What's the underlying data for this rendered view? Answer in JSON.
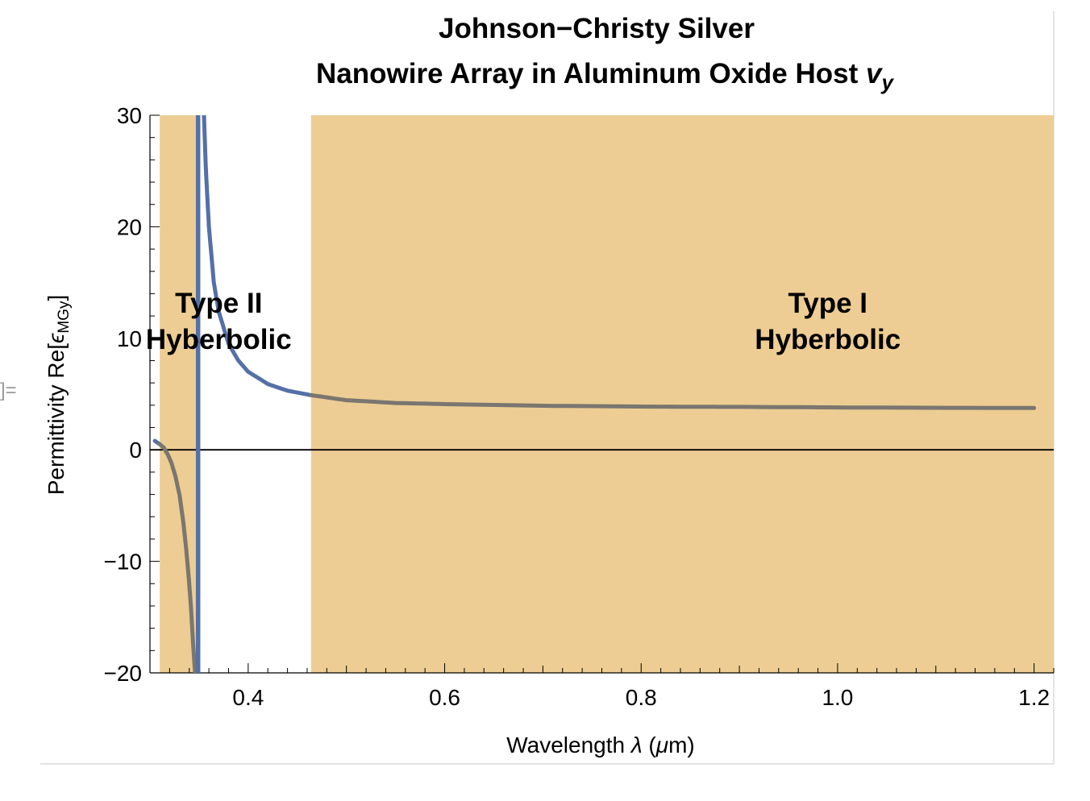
{
  "page": {
    "cell_marker": "]="
  },
  "chart_data": {
    "type": "line",
    "title": "Johnson−Christy Silver",
    "subtitle_text": "Nanowire Array in Aluminum Oxide Host ",
    "subtitle_var": "v",
    "subtitle_sub": "y",
    "xlabel_text": "Wavelength ",
    "xlabel_lambda": "λ",
    "xlabel_open": " (",
    "xlabel_mu": "μ",
    "xlabel_close": "m)",
    "ylabel_text": "Permittivity Re[",
    "ylabel_eps": "ϵ",
    "ylabel_sub": "MGy",
    "ylabel_close": "]",
    "xlim": [
      0.3,
      1.22
    ],
    "ylim": [
      -20,
      30
    ],
    "x_ticks": [
      0.4,
      0.6,
      0.8,
      1.0,
      1.2
    ],
    "x_tick_labels": [
      "0.4",
      "0.6",
      "0.8",
      "1.0",
      "1.2"
    ],
    "y_ticks": [
      -20,
      -10,
      0,
      10,
      20,
      30
    ],
    "y_tick_labels": [
      "−20",
      "−10",
      "0",
      "10",
      "20",
      "30"
    ],
    "shaded_regions": [
      {
        "x0": 0.31,
        "x1": 0.35,
        "label_line1": "Type II",
        "label_line2": "Hyberbolic",
        "label_x": 0.37,
        "label_y": 12
      },
      {
        "x0": 0.464,
        "x1": 1.22,
        "label_line1": "Type I",
        "label_line2": "Hyberbolic",
        "label_x": 0.99,
        "label_y": 12
      }
    ],
    "colors": {
      "shade": "#edcd93",
      "curve": "#5470a8",
      "curve_in_shade": "#7a7670",
      "zero_line": "#000000"
    },
    "series": [
      {
        "segments": [
          {
            "x": [
              0.305,
              0.31,
              0.314,
              0.318,
              0.322,
              0.326,
              0.33,
              0.334,
              0.337,
              0.34,
              0.342,
              0.344,
              0.346
            ],
            "y": [
              0.8,
              0.5,
              0.2,
              -0.4,
              -1.2,
              -2.4,
              -4.0,
              -6.5,
              -9.0,
              -12.0,
              -14.5,
              -17.5,
              -20.0
            ]
          },
          {
            "x": [
              0.349,
              0.349
            ],
            "y": [
              -20,
              30
            ]
          },
          {
            "x": [
              0.355,
              0.357,
              0.36,
              0.365,
              0.37,
              0.38,
              0.39,
              0.4,
              0.42,
              0.44,
              0.464,
              0.5,
              0.55,
              0.6,
              0.7,
              0.8,
              0.9,
              1.0,
              1.1,
              1.2
            ],
            "y": [
              30.0,
              25.0,
              20.0,
              15.0,
              12.4,
              9.5,
              8.0,
              7.0,
              5.9,
              5.3,
              4.9,
              4.45,
              4.2,
              4.1,
              3.95,
              3.88,
              3.85,
              3.8,
              3.77,
              3.75
            ]
          }
        ]
      }
    ]
  }
}
